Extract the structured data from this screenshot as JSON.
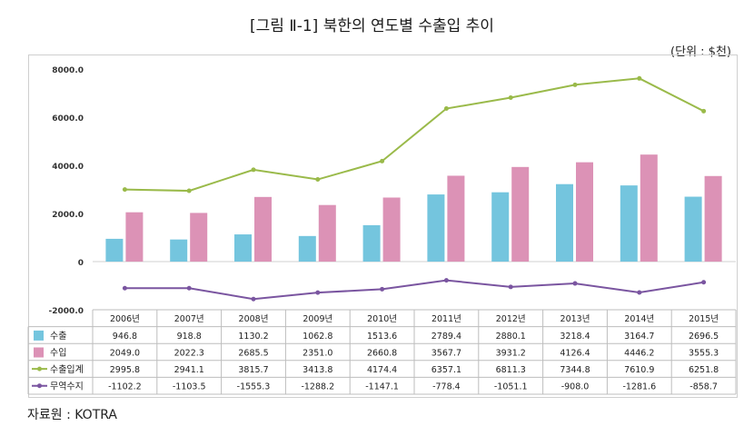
{
  "title": "[그림 Ⅱ-1] 북한의 연도별 수출입 추이",
  "unit": "(단위 : $천)",
  "source": "자료원 : KOTRA",
  "colors": {
    "export": "#74c5de",
    "import": "#dc92b6",
    "total": "#9aba4a",
    "balance": "#7a55a0"
  },
  "chart_data": {
    "type": "bar",
    "categories": [
      "2006년",
      "2007년",
      "2008년",
      "2009년",
      "2010년",
      "2011년",
      "2012년",
      "2013년",
      "2014년",
      "2015년"
    ],
    "ylim": [
      -2000,
      8000
    ],
    "yticks": [
      -2000,
      0,
      2000,
      4000,
      6000,
      8000
    ],
    "ytick_labels": [
      "-2000.0",
      "0",
      "2000.0",
      "4000.0",
      "6000.0",
      "8000.0"
    ],
    "series": [
      {
        "name": "수출",
        "kind": "bar",
        "values": [
          946.8,
          918.8,
          1130.2,
          1062.8,
          1513.6,
          2789.4,
          2880.1,
          3218.4,
          3164.7,
          2696.5
        ],
        "labels": [
          "946.8",
          "918.8",
          "1130.2",
          "1062.8",
          "1513.6",
          "2789.4",
          "2880.1",
          "3218.4",
          "3164.7",
          "2696.5"
        ]
      },
      {
        "name": "수입",
        "kind": "bar",
        "values": [
          2049.0,
          2022.3,
          2685.5,
          2351.0,
          2660.8,
          3567.7,
          3931.2,
          4126.4,
          4446.2,
          3555.3
        ],
        "labels": [
          "2049.0",
          "2022.3",
          "2685.5",
          "2351.0",
          "2660.8",
          "3567.7",
          "3931.2",
          "4126.4",
          "4446.2",
          "3555.3"
        ]
      },
      {
        "name": "수출입계",
        "kind": "line",
        "values": [
          2995.8,
          2941.1,
          3815.7,
          3413.8,
          4174.4,
          6357.1,
          6811.3,
          7344.8,
          7610.9,
          6251.8
        ],
        "labels": [
          "2995.8",
          "2941.1",
          "3815.7",
          "3413.8",
          "4174.4",
          "6357.1",
          "6811.3",
          "7344.8",
          "7610.9",
          "6251.8"
        ]
      },
      {
        "name": "무역수지",
        "kind": "line",
        "values": [
          -1102.2,
          -1103.5,
          -1555.3,
          -1288.2,
          -1147.1,
          -778.4,
          -1051.1,
          -908.0,
          -1281.6,
          -858.7
        ],
        "labels": [
          "-1102.2",
          "-1103.5",
          "-1555.3",
          "-1288.2",
          "-1147.1",
          "-778.4",
          "-1051.1",
          "-908.0",
          "-1281.6",
          "-858.7"
        ]
      }
    ]
  }
}
